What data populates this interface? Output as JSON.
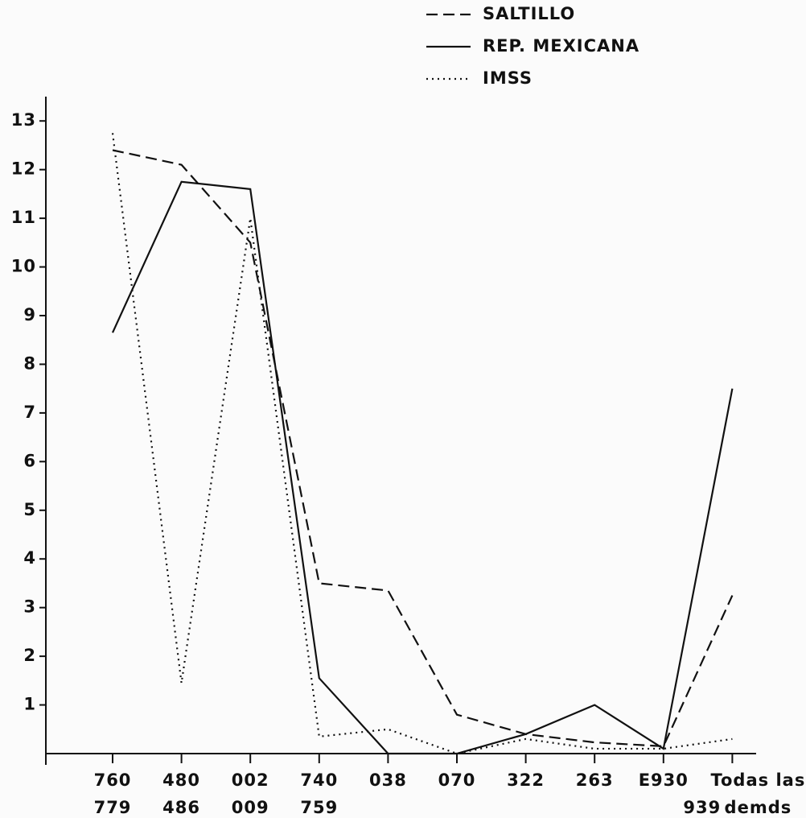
{
  "chart_data": {
    "type": "line",
    "categories": [
      [
        "760",
        "779"
      ],
      [
        "480",
        "486"
      ],
      [
        "002",
        "009"
      ],
      [
        "740",
        "759"
      ],
      [
        "038"
      ],
      [
        "070"
      ],
      [
        "322"
      ],
      [
        "263"
      ],
      [
        "E930",
        "939"
      ],
      [
        "Todas las",
        "demds"
      ]
    ],
    "series": [
      {
        "name": "SALTILLO",
        "color": "#111111",
        "dash": "dashed",
        "values": [
          12.4,
          12.1,
          10.5,
          3.5,
          3.35,
          0.8,
          0.4,
          0.23,
          0.15,
          3.25
        ]
      },
      {
        "name": "REP. MEXICANA",
        "color": "#111111",
        "dash": "solid",
        "values": [
          8.65,
          11.75,
          11.6,
          1.55,
          0,
          0,
          0.4,
          1.0,
          0.1,
          7.5
        ]
      },
      {
        "name": "IMSS",
        "color": "#111111",
        "dash": "dotted",
        "values": [
          12.75,
          1.45,
          11.0,
          0.35,
          0.5,
          0,
          0.3,
          0.1,
          0.1,
          0.3
        ]
      }
    ],
    "ylim": [
      0,
      13.5
    ],
    "yticks": [
      1,
      2,
      3,
      4,
      5,
      6,
      7,
      8,
      9,
      10,
      11,
      12,
      13
    ],
    "legend": "top-right"
  }
}
